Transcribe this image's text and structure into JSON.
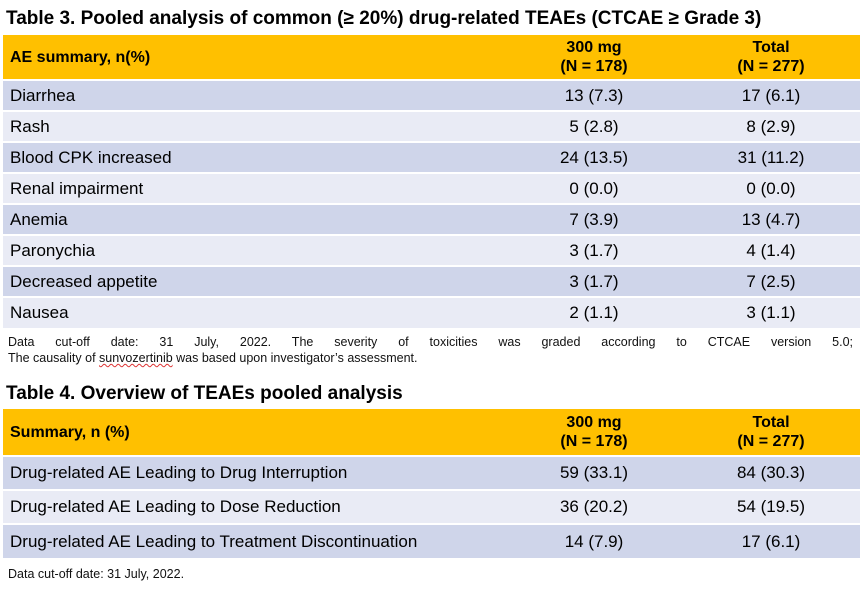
{
  "table3": {
    "title": "Table 3. Pooled analysis of common (≥ 20%) drug-related TEAEs (CTCAE ≥ Grade 3)",
    "headers": [
      "AE summary, n(%)",
      "300 mg",
      "(N = 178)",
      "Total",
      "(N = 277)"
    ],
    "rows": [
      [
        "Diarrhea",
        "13 (7.3)",
        "17 (6.1)"
      ],
      [
        "Rash",
        "5 (2.8)",
        "8 (2.9)"
      ],
      [
        "Blood CPK increased",
        "24 (13.5)",
        "31 (11.2)"
      ],
      [
        "Renal impairment",
        "0 (0.0)",
        "0 (0.0)"
      ],
      [
        "Anemia",
        "7 (3.9)",
        "13 (4.7)"
      ],
      [
        "Paronychia",
        "3 (1.7)",
        "4 (1.4)"
      ],
      [
        "Decreased appetite",
        "3 (1.7)",
        "7 (2.5)"
      ],
      [
        "Nausea",
        "2 (1.1)",
        "3 (1.1)"
      ]
    ],
    "note_line1": "Data cut-off date: 31 July, 2022. The severity of toxicities was graded according to CTCAE version 5.0;",
    "note_line2_a": "The causality of ",
    "note_line2_b": "sunvozertinib",
    "note_line2_c": " was based upon investigator’s assessment."
  },
  "table4": {
    "title": "Table 4. Overview of TEAEs pooled analysis",
    "headers": [
      "Summary, n (%)",
      "300 mg",
      "(N = 178)",
      "Total",
      "(N = 277)"
    ],
    "rows": [
      [
        "Drug-related AE Leading to Drug Interruption",
        "59 (33.1)",
        "84 (30.3)"
      ],
      [
        "Drug-related AE Leading to Dose Reduction",
        "36 (20.2)",
        "54 (19.5)"
      ],
      [
        "Drug-related AE Leading to Treatment Discontinuation",
        "14 (7.9)",
        "17 (6.1)"
      ]
    ],
    "note": "Data cut-off date: 31 July, 2022."
  },
  "colors": {
    "header": "#FFC000",
    "row_dark": "#CFD5EA",
    "row_light": "#E9EBF5"
  }
}
